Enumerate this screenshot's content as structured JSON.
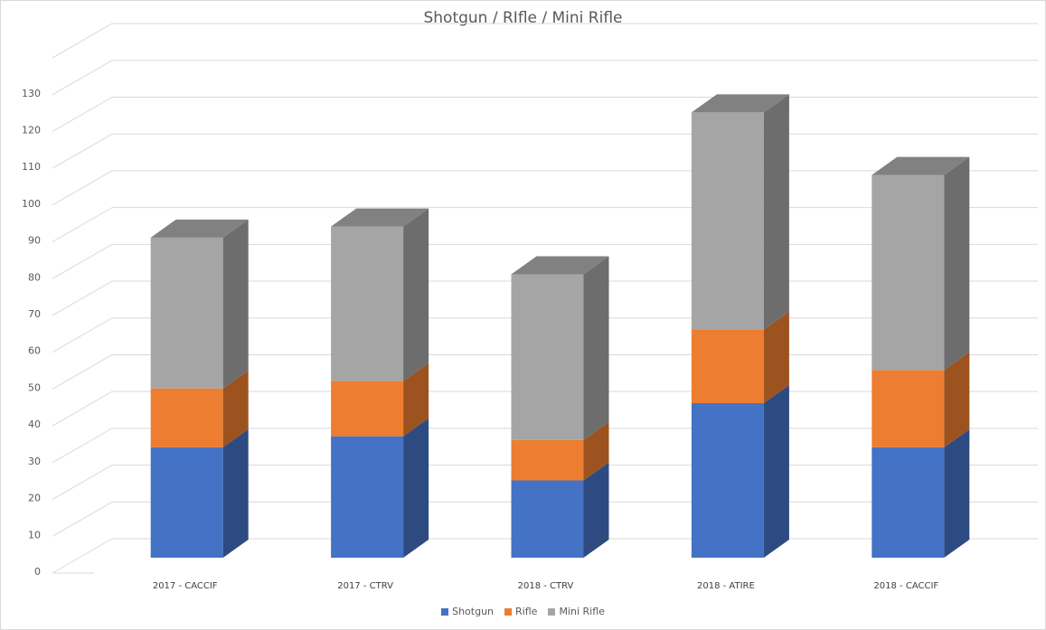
{
  "chart_data": {
    "type": "bar",
    "stacked": true,
    "three_d": true,
    "title": "Shotgun / RIfle / Mini Rifle",
    "categories": [
      "2017 - CACCIF",
      "2017 - CTRV",
      "2018 - CTRV",
      "2018 - ATIRE",
      "2018 - CACCIF"
    ],
    "series": [
      {
        "name": "Shotgun",
        "values": [
          30,
          33,
          21,
          42,
          30
        ],
        "color": "#4472c4"
      },
      {
        "name": "Rifle",
        "values": [
          16,
          15,
          11,
          20,
          21
        ],
        "color": "#ed7d31"
      },
      {
        "name": "Mini Rifle",
        "values": [
          41,
          42,
          45,
          59,
          53
        ],
        "color": "#a5a5a5"
      }
    ],
    "yticks": [
      "0",
      "10",
      "20",
      "30",
      "40",
      "50",
      "60",
      "70",
      "80",
      "90",
      "100",
      "110",
      "120",
      "130"
    ],
    "ylim": [
      0,
      140
    ],
    "grid": true,
    "legend_position": "bottom"
  }
}
